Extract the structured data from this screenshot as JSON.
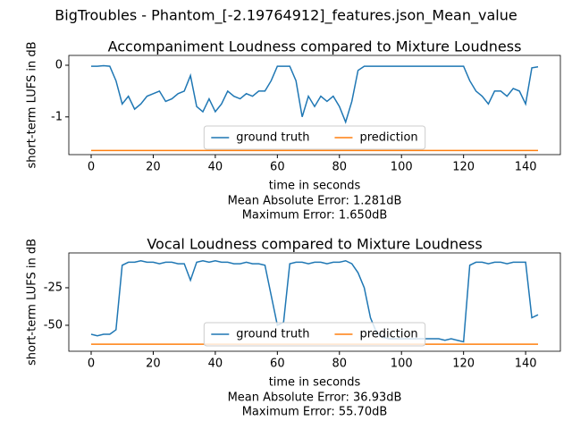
{
  "title": "BigTroubles - Phantom_[-2.19764912]_features.json_Mean_value",
  "chart_data": [
    {
      "type": "line",
      "title": "Accompaniment Loudness compared to Mixture Loudness",
      "x_label": "time in seconds",
      "y_label": "short-term LUFS in dB",
      "annotations": [
        "Mean Absolute Error: 1.281dB",
        "Maximum Error: 1.650dB"
      ],
      "xlim": [
        -7.2,
        151.2
      ],
      "xticks": [
        0,
        20,
        40,
        60,
        80,
        100,
        120,
        140
      ],
      "ylim": [
        -1.73,
        0.19
      ],
      "yticks": [
        -1,
        0
      ],
      "legend": "lower center",
      "x": [
        0,
        2,
        4,
        6,
        8,
        10,
        12,
        14,
        16,
        18,
        20,
        22,
        24,
        26,
        28,
        30,
        32,
        34,
        36,
        38,
        40,
        42,
        44,
        46,
        48,
        50,
        52,
        54,
        56,
        58,
        60,
        62,
        64,
        66,
        68,
        70,
        72,
        74,
        76,
        78,
        80,
        82,
        84,
        86,
        88,
        90,
        92,
        94,
        96,
        98,
        100,
        102,
        104,
        106,
        108,
        110,
        112,
        114,
        116,
        118,
        120,
        122,
        124,
        126,
        128,
        130,
        132,
        134,
        136,
        138,
        140,
        142,
        144
      ],
      "series": [
        {
          "name": "ground truth",
          "color": "#1f77b4",
          "values": [
            -0.02,
            -0.02,
            -0.01,
            -0.02,
            -0.3,
            -0.75,
            -0.6,
            -0.85,
            -0.75,
            -0.6,
            -0.55,
            -0.5,
            -0.7,
            -0.65,
            -0.55,
            -0.5,
            -0.2,
            -0.8,
            -0.9,
            -0.65,
            -0.9,
            -0.75,
            -0.5,
            -0.6,
            -0.65,
            -0.55,
            -0.6,
            -0.5,
            -0.5,
            -0.3,
            -0.02,
            -0.02,
            -0.02,
            -0.3,
            -1.0,
            -0.6,
            -0.8,
            -0.6,
            -0.7,
            -0.6,
            -0.8,
            -1.1,
            -0.7,
            -0.1,
            -0.02,
            -0.02,
            -0.02,
            -0.02,
            -0.02,
            -0.02,
            -0.02,
            -0.02,
            -0.02,
            -0.02,
            -0.02,
            -0.02,
            -0.02,
            -0.02,
            -0.02,
            -0.02,
            -0.02,
            -0.3,
            -0.5,
            -0.6,
            -0.75,
            -0.5,
            -0.5,
            -0.6,
            -0.45,
            -0.5,
            -0.75,
            -0.05,
            -0.03
          ]
        },
        {
          "name": "prediction",
          "color": "#ff7f0e",
          "values": [
            -1.65,
            -1.65,
            -1.65,
            -1.65,
            -1.65,
            -1.65,
            -1.65,
            -1.65,
            -1.65,
            -1.65,
            -1.65,
            -1.65,
            -1.65,
            -1.65,
            -1.65,
            -1.65,
            -1.65,
            -1.65,
            -1.65,
            -1.65,
            -1.65,
            -1.65,
            -1.65,
            -1.65,
            -1.65,
            -1.65,
            -1.65,
            -1.65,
            -1.65,
            -1.65,
            -1.65,
            -1.65,
            -1.65,
            -1.65,
            -1.65,
            -1.65,
            -1.65,
            -1.65,
            -1.65,
            -1.65,
            -1.65,
            -1.65,
            -1.65,
            -1.65,
            -1.65,
            -1.65,
            -1.65,
            -1.65,
            -1.65,
            -1.65,
            -1.65,
            -1.65,
            -1.65,
            -1.65,
            -1.65,
            -1.65,
            -1.65,
            -1.65,
            -1.65,
            -1.65,
            -1.65,
            -1.65,
            -1.65,
            -1.65,
            -1.65,
            -1.65,
            -1.65,
            -1.65,
            -1.65,
            -1.65,
            -1.65,
            -1.65,
            -1.65
          ]
        }
      ]
    },
    {
      "type": "line",
      "title": "Vocal Loudness compared to Mixture Loudness",
      "x_label": "time in seconds",
      "y_label": "short-term LUFS in dB",
      "annotations": [
        "Mean Absolute Error: 36.93dB",
        "Maximum Error: 55.70dB"
      ],
      "xlim": [
        -7.2,
        151.2
      ],
      "xticks": [
        0,
        20,
        40,
        60,
        80,
        100,
        120,
        140
      ],
      "ylim": [
        -67.3,
        -1.8
      ],
      "yticks": [
        -50,
        -25
      ],
      "legend": "lower center",
      "x": [
        0,
        2,
        4,
        6,
        8,
        10,
        12,
        14,
        16,
        18,
        20,
        22,
        24,
        26,
        28,
        30,
        32,
        34,
        36,
        38,
        40,
        42,
        44,
        46,
        48,
        50,
        52,
        54,
        56,
        58,
        60,
        62,
        64,
        66,
        68,
        70,
        72,
        74,
        76,
        78,
        80,
        82,
        84,
        86,
        88,
        90,
        92,
        94,
        96,
        98,
        100,
        102,
        104,
        106,
        108,
        110,
        112,
        114,
        116,
        118,
        120,
        122,
        124,
        126,
        128,
        130,
        132,
        134,
        136,
        138,
        140,
        142,
        144
      ],
      "series": [
        {
          "name": "ground truth",
          "color": "#1f77b4",
          "values": [
            -56,
            -57,
            -56,
            -56,
            -53,
            -10,
            -8,
            -8,
            -7,
            -8,
            -8,
            -9,
            -8,
            -8,
            -9,
            -9,
            -20,
            -8,
            -7,
            -8,
            -7,
            -8,
            -8,
            -9,
            -9,
            -8,
            -9,
            -9,
            -10,
            -30,
            -50,
            -48,
            -9,
            -8,
            -8,
            -9,
            -8,
            -8,
            -9,
            -8,
            -8,
            -7,
            -9,
            -15,
            -25,
            -45,
            -55,
            -58,
            -59,
            -59,
            -59,
            -59,
            -59,
            -59,
            -59,
            -59,
            -59,
            -60,
            -59,
            -60,
            -61,
            -10,
            -8,
            -8,
            -9,
            -8,
            -8,
            -9,
            -8,
            -8,
            -8,
            -45,
            -43
          ]
        },
        {
          "name": "prediction",
          "color": "#ff7f0e",
          "values": [
            -62.6,
            -62.6,
            -62.6,
            -62.6,
            -62.6,
            -62.6,
            -62.6,
            -62.6,
            -62.6,
            -62.6,
            -62.6,
            -62.6,
            -62.6,
            -62.6,
            -62.6,
            -62.6,
            -62.6,
            -62.6,
            -62.6,
            -62.6,
            -62.6,
            -62.6,
            -62.6,
            -62.6,
            -62.6,
            -62.6,
            -62.6,
            -62.6,
            -62.6,
            -62.6,
            -62.6,
            -62.6,
            -62.6,
            -62.6,
            -62.6,
            -62.6,
            -62.6,
            -62.6,
            -62.6,
            -62.6,
            -62.6,
            -62.6,
            -62.6,
            -62.6,
            -62.6,
            -62.6,
            -62.6,
            -62.6,
            -62.6,
            -62.6,
            -62.6,
            -62.6,
            -62.6,
            -62.6,
            -62.6,
            -62.6,
            -62.6,
            -62.6,
            -62.6,
            -62.6,
            -62.6,
            -62.6,
            -62.6,
            -62.6,
            -62.6,
            -62.6,
            -62.6,
            -62.6,
            -62.6,
            -62.6,
            -62.6,
            -62.6,
            -62.6
          ]
        }
      ]
    }
  ]
}
